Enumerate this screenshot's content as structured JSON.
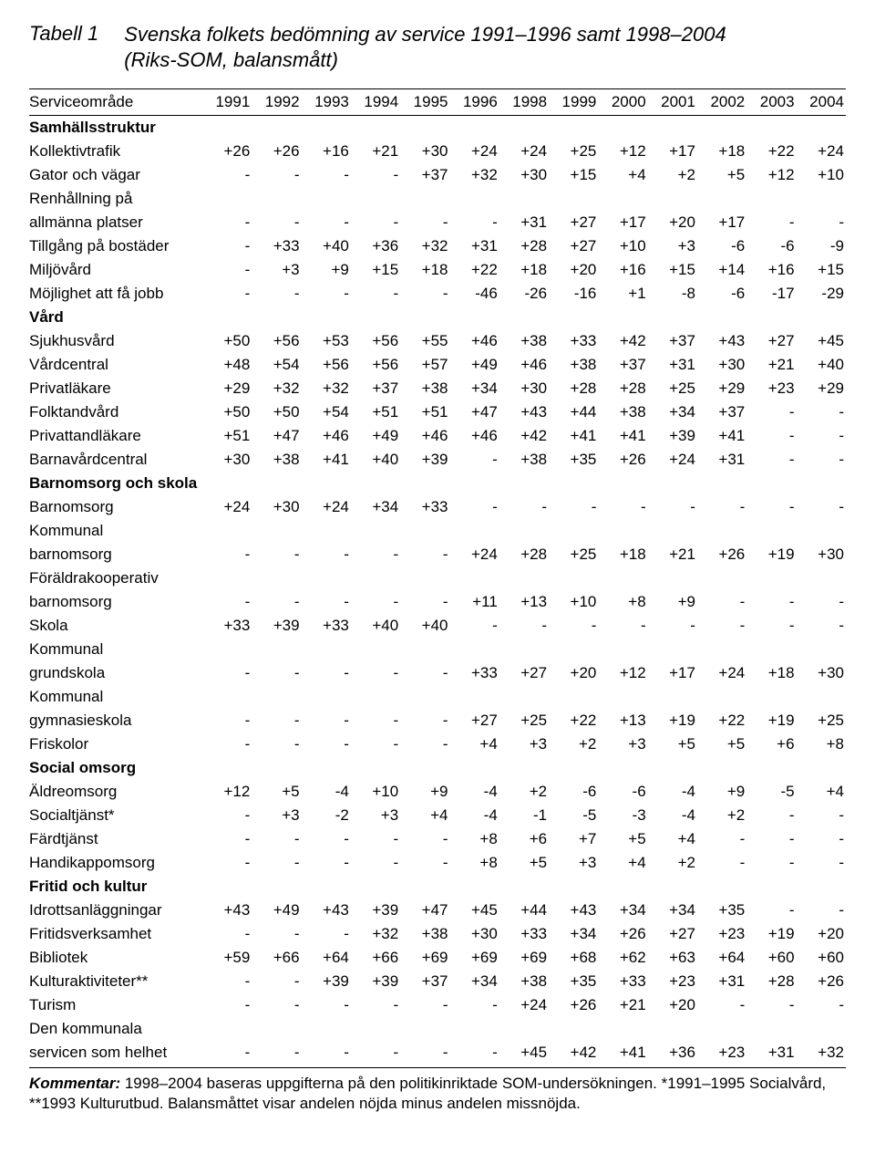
{
  "title_label": "Tabell 1",
  "title_text_1": "Svenska folkets bedömning av service 1991–1996 samt 1998–2004",
  "title_text_2": "(Riks-SOM, balansmått)",
  "header_label": "Serviceområde",
  "years": [
    "1991",
    "1992",
    "1993",
    "1994",
    "1995",
    "1996",
    "1998",
    "1999",
    "2000",
    "2001",
    "2002",
    "2003",
    "2004"
  ],
  "sect_samhall": "Samhällsstruktur",
  "r_kollektiv": {
    "label": "Kollektivtrafik",
    "v": [
      "+26",
      "+26",
      "+16",
      "+21",
      "+30",
      "+24",
      "+24",
      "+25",
      "+12",
      "+17",
      "+18",
      "+22",
      "+24"
    ]
  },
  "r_gator": {
    "label": "Gator och vägar",
    "v": [
      "-",
      "-",
      "-",
      "-",
      "+37",
      "+32",
      "+30",
      "+15",
      "+4",
      "+2",
      "+5",
      "+12",
      "+10"
    ]
  },
  "r_renh_a": {
    "label": "Renhållning på"
  },
  "r_renh_b": {
    "label": "allmänna platser",
    "v": [
      "-",
      "-",
      "-",
      "-",
      "-",
      "-",
      "+31",
      "+27",
      "+17",
      "+20",
      "+17",
      "-",
      "-"
    ]
  },
  "r_bostad": {
    "label": "Tillgång på bostäder",
    "v": [
      "-",
      "+33",
      "+40",
      "+36",
      "+32",
      "+31",
      "+28",
      "+27",
      "+10",
      "+3",
      "-6",
      "-6",
      "-9"
    ]
  },
  "r_miljo": {
    "label": "Miljövård",
    "v": [
      "-",
      "+3",
      "+9",
      "+15",
      "+18",
      "+22",
      "+18",
      "+20",
      "+16",
      "+15",
      "+14",
      "+16",
      "+15"
    ]
  },
  "r_jobb": {
    "label": "Möjlighet att få jobb",
    "v": [
      "-",
      "-",
      "-",
      "-",
      "-",
      "-46",
      "-26",
      "-16",
      "+1",
      "-8",
      "-6",
      "-17",
      "-29"
    ]
  },
  "sect_vard": "Vård",
  "r_sjukhus": {
    "label": "Sjukhusvård",
    "v": [
      "+50",
      "+56",
      "+53",
      "+56",
      "+55",
      "+46",
      "+38",
      "+33",
      "+42",
      "+37",
      "+43",
      "+27",
      "+45"
    ]
  },
  "r_vardc": {
    "label": "Vårdcentral",
    "v": [
      "+48",
      "+54",
      "+56",
      "+56",
      "+57",
      "+49",
      "+46",
      "+38",
      "+37",
      "+31",
      "+30",
      "+21",
      "+40"
    ]
  },
  "r_privlak": {
    "label": "Privatläkare",
    "v": [
      "+29",
      "+32",
      "+32",
      "+37",
      "+38",
      "+34",
      "+30",
      "+28",
      "+28",
      "+25",
      "+29",
      "+23",
      "+29"
    ]
  },
  "r_folktand": {
    "label": "Folktandvård",
    "v": [
      "+50",
      "+50",
      "+54",
      "+51",
      "+51",
      "+47",
      "+43",
      "+44",
      "+38",
      "+34",
      "+37",
      "-",
      "-"
    ]
  },
  "r_privtand": {
    "label": "Privattandläkare",
    "v": [
      "+51",
      "+47",
      "+46",
      "+49",
      "+46",
      "+46",
      "+42",
      "+41",
      "+41",
      "+39",
      "+41",
      "-",
      "-"
    ]
  },
  "r_barnav": {
    "label": "Barnavårdcentral",
    "v": [
      "+30",
      "+38",
      "+41",
      "+40",
      "+39",
      "-",
      "+38",
      "+35",
      "+26",
      "+24",
      "+31",
      "-",
      "-"
    ]
  },
  "sect_barn": "Barnomsorg och skola",
  "r_barnoms": {
    "label": "Barnomsorg",
    "v": [
      "+24",
      "+30",
      "+24",
      "+34",
      "+33",
      "-",
      "-",
      "-",
      "-",
      "-",
      "-",
      "-",
      "-"
    ]
  },
  "r_kommbarn_a": {
    "label": "Kommunal"
  },
  "r_kommbarn_b": {
    "label": "barnomsorg",
    "v": [
      "-",
      "-",
      "-",
      "-",
      "-",
      "+24",
      "+28",
      "+25",
      "+18",
      "+21",
      "+26",
      "+19",
      "+30"
    ]
  },
  "r_foraldr_a": {
    "label": "Föräldrakooperativ"
  },
  "r_foraldr_b": {
    "label": "barnomsorg",
    "v": [
      "-",
      "-",
      "-",
      "-",
      "-",
      "+11",
      "+13",
      "+10",
      "+8",
      "+9",
      "-",
      "-",
      "-"
    ]
  },
  "r_skola": {
    "label": "Skola",
    "v": [
      "+33",
      "+39",
      "+33",
      "+40",
      "+40",
      "-",
      "-",
      "-",
      "-",
      "-",
      "-",
      "-",
      "-"
    ]
  },
  "r_kommgrund_a": {
    "label": "Kommunal"
  },
  "r_kommgrund_b": {
    "label": "grundskola",
    "v": [
      "-",
      "-",
      "-",
      "-",
      "-",
      "+33",
      "+27",
      "+20",
      "+12",
      "+17",
      "+24",
      "+18",
      "+30"
    ]
  },
  "r_kommgymn_a": {
    "label": "Kommunal"
  },
  "r_kommgymn_b": {
    "label": "gymnasieskola",
    "v": [
      "-",
      "-",
      "-",
      "-",
      "-",
      "+27",
      "+25",
      "+22",
      "+13",
      "+19",
      "+22",
      "+19",
      "+25"
    ]
  },
  "r_friskolor": {
    "label": "Friskolor",
    "v": [
      "-",
      "-",
      "-",
      "-",
      "-",
      "+4",
      "+3",
      "+2",
      "+3",
      "+5",
      "+5",
      "+6",
      "+8"
    ]
  },
  "sect_social": "Social omsorg",
  "r_aldre": {
    "label": "Äldreomsorg",
    "v": [
      "+12",
      "+5",
      "-4",
      "+10",
      "+9",
      "-4",
      "+2",
      "-6",
      "-6",
      "-4",
      "+9",
      "-5",
      "+4"
    ]
  },
  "r_socialtj": {
    "label": "Socialtjänst*",
    "v": [
      "-",
      "+3",
      "-2",
      "+3",
      "+4",
      "-4",
      "-1",
      "-5",
      "-3",
      "-4",
      "+2",
      "-",
      "-"
    ]
  },
  "r_fardtj": {
    "label": "Färdtjänst",
    "v": [
      "-",
      "-",
      "-",
      "-",
      "-",
      "+8",
      "+6",
      "+7",
      "+5",
      "+4",
      "-",
      "-",
      "-"
    ]
  },
  "r_handikapp": {
    "label": "Handikappomsorg",
    "v": [
      "-",
      "-",
      "-",
      "-",
      "-",
      "+8",
      "+5",
      "+3",
      "+4",
      "+2",
      "-",
      "-",
      "-"
    ]
  },
  "sect_fritid": "Fritid och kultur",
  "r_idrott": {
    "label": "Idrottsanläggningar",
    "v": [
      "+43",
      "+49",
      "+43",
      "+39",
      "+47",
      "+45",
      "+44",
      "+43",
      "+34",
      "+34",
      "+35",
      "-",
      "-"
    ]
  },
  "r_fritidsv": {
    "label": "Fritidsverksamhet",
    "v": [
      "-",
      "-",
      "-",
      "+32",
      "+38",
      "+30",
      "+33",
      "+34",
      "+26",
      "+27",
      "+23",
      "+19",
      "+20"
    ]
  },
  "r_bibliotek": {
    "label": "Bibliotek",
    "v": [
      "+59",
      "+66",
      "+64",
      "+66",
      "+69",
      "+69",
      "+69",
      "+68",
      "+62",
      "+63",
      "+64",
      "+60",
      "+60"
    ]
  },
  "r_kultur": {
    "label": "Kulturaktiviteter**",
    "v": [
      "-",
      "-",
      "+39",
      "+39",
      "+37",
      "+34",
      "+38",
      "+35",
      "+33",
      "+23",
      "+31",
      "+28",
      "+26"
    ]
  },
  "r_turism": {
    "label": "Turism",
    "v": [
      "-",
      "-",
      "-",
      "-",
      "-",
      "-",
      "+24",
      "+26",
      "+21",
      "+20",
      "-",
      "-",
      "-"
    ]
  },
  "r_helhet_a": {
    "label": "Den kommunala"
  },
  "r_helhet_b": {
    "label": "servicen som helhet",
    "v": [
      "-",
      "-",
      "-",
      "-",
      "-",
      "-",
      "+45",
      "+42",
      "+41",
      "+36",
      "+23",
      "+31",
      "+32"
    ]
  },
  "comment_lead": "Kommentar:",
  "comment_text": " 1998–2004 baseras uppgifterna på den politikinriktade SOM-undersökningen. *1991–1995 Socialvård, **1993 Kulturutbud. Balansmåttet visar andelen nöjda minus andelen missnöjda."
}
